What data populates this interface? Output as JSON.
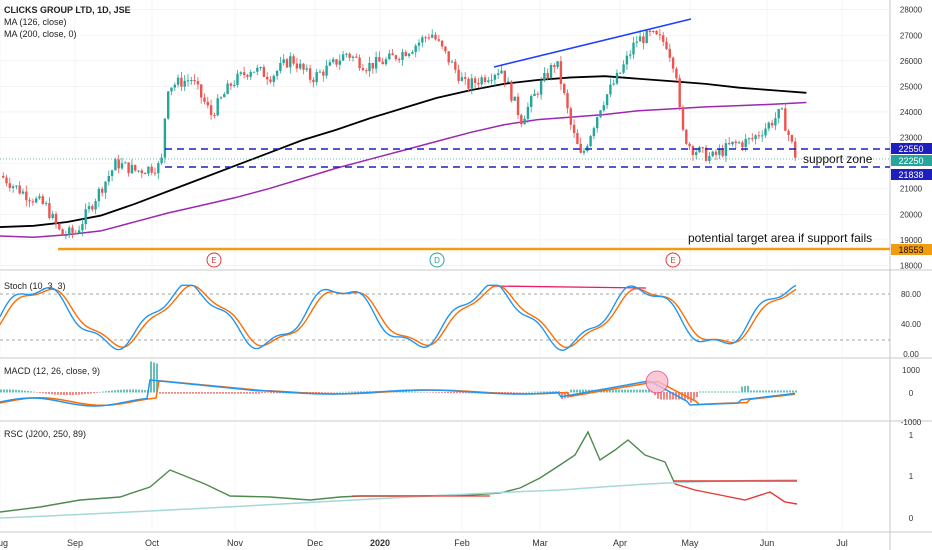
{
  "legend": {
    "title": "CLICKS GROUP LTD, 1D, JSE",
    "ma1": "MA (126, close)",
    "ma2": "MA (200, close, 0)"
  },
  "annotations": {
    "support": "support zone",
    "target": "potential target area if support fails"
  },
  "badges": [
    "E",
    "D",
    "E"
  ],
  "price_tags": [
    "22550",
    "22250",
    "21838",
    "18553"
  ],
  "colors": {
    "up": "#26a69a",
    "down": "#ef5350",
    "ma126": "#9c27b0",
    "ma200": "#000000",
    "trend": "#1e40ff",
    "support": "#1e1ebe",
    "target": "#f39c12",
    "fast": "#2196f3",
    "slow": "#ff6d00",
    "rsc": "#4e8a4e",
    "rsc_red": "#e53935",
    "rsc_ma": "#a7d8d8"
  },
  "stoch_title": "Stoch (10, 3, 3)",
  "macd_title": "MACD (12, 26, close, 9)",
  "rsc_title": "RSC (J200, 250, 89)",
  "chart_data": [
    {
      "type": "candlestick",
      "title": "CLICKS GROUP LTD, 1D, JSE",
      "xlabel": "",
      "ylabel": "",
      "x_tick_labels": [
        "Aug",
        "Sep",
        "Oct",
        "Nov",
        "Dec",
        "2020",
        "Feb",
        "Mar",
        "Apr",
        "May",
        "Jun",
        "Jul"
      ],
      "y_tick_labels": [
        "28000",
        "27000",
        "26000",
        "25000",
        "24000",
        "23000",
        "22000",
        "21000",
        "20000",
        "19000",
        "18000"
      ],
      "ylim": [
        17900,
        28300
      ],
      "series": [
        {
          "name": "MA (126, close)",
          "points": [
            [
              0,
              19150
            ],
            [
              20,
              19100
            ],
            [
              40,
              19200
            ],
            [
              60,
              19350
            ],
            [
              80,
              19700
            ],
            [
              100,
              20050
            ],
            [
              120,
              20350
            ],
            [
              140,
              20650
            ],
            [
              160,
              21000
            ],
            [
              180,
              21400
            ],
            [
              200,
              21800
            ],
            [
              220,
              22150
            ],
            [
              240,
              22500
            ],
            [
              260,
              22850
            ],
            [
              280,
              23200
            ],
            [
              300,
              23500
            ],
            [
              320,
              23700
            ],
            [
              340,
              23800
            ],
            [
              360,
              23900
            ],
            [
              380,
              24050
            ],
            [
              400,
              24120
            ],
            [
              420,
              24200
            ],
            [
              440,
              24250
            ],
            [
              460,
              24300
            ],
            [
              480,
              24370
            ]
          ]
        },
        {
          "name": "MA (200, close, 0)",
          "points": [
            [
              0,
              19500
            ],
            [
              20,
              19550
            ],
            [
              40,
              19700
            ],
            [
              60,
              19950
            ],
            [
              80,
              20400
            ],
            [
              100,
              20900
            ],
            [
              120,
              21400
            ],
            [
              140,
              21900
            ],
            [
              160,
              22400
            ],
            [
              180,
              22900
            ],
            [
              200,
              23300
            ],
            [
              220,
              23750
            ],
            [
              240,
              24150
            ],
            [
              260,
              24550
            ],
            [
              280,
              24850
            ],
            [
              300,
              25100
            ],
            [
              320,
              25250
            ],
            [
              340,
              25350
            ],
            [
              360,
              25400
            ],
            [
              380,
              25300
            ],
            [
              400,
              25200
            ],
            [
              420,
              25100
            ],
            [
              440,
              24950
            ],
            [
              460,
              24850
            ],
            [
              480,
              24750
            ]
          ]
        }
      ],
      "levels": [
        22550,
        22250,
        21838,
        18553
      ],
      "price_labels": [
        "22550",
        "22250",
        "21838",
        "18553"
      ],
      "trendline": [
        [
          290,
          25880
        ],
        [
          415,
          27750
        ]
      ]
    },
    {
      "type": "line",
      "title": "Stoch (10, 3, 3)",
      "y_tick_labels": [
        "80.00",
        "40.00",
        "0.00"
      ],
      "ylim": [
        -5,
        105
      ],
      "dashed_levels": [
        80,
        20
      ]
    },
    {
      "type": "line",
      "title": "MACD (12, 26, close, 9)",
      "y_tick_labels": [
        "1000",
        "0",
        "-1000"
      ],
      "ylim": [
        -1300,
        1300
      ]
    },
    {
      "type": "line",
      "title": "RSC (J200, 250, 89)",
      "y_tick_labels": [
        "1",
        "1",
        "0"
      ],
      "ylim": [
        -0.1,
        1.3
      ]
    }
  ]
}
